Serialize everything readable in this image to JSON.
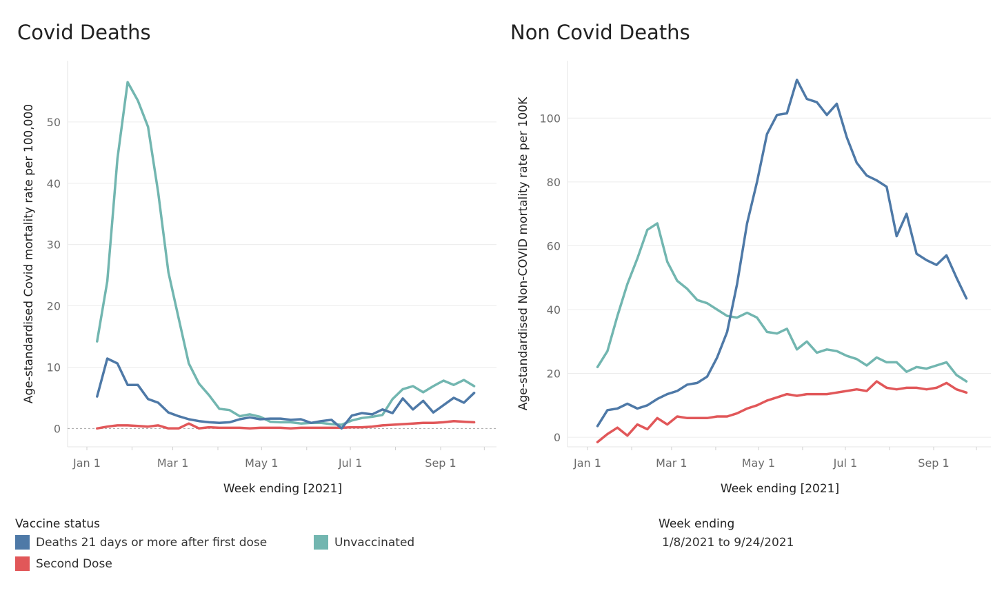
{
  "chart_data": [
    {
      "type": "line",
      "title": "Covid Deaths",
      "xlabel": "Week ending [2021]",
      "ylabel": "Age-standardised Covid mortality rate per 100,000",
      "ylim": [
        -3,
        60
      ],
      "yticks": [
        0,
        10,
        20,
        30,
        40,
        50
      ],
      "xticks": [
        {
          "label": "Jan 1",
          "day": 1
        },
        {
          "label": "Mar 1",
          "day": 60
        },
        {
          "label": "May 1",
          "day": 121
        },
        {
          "label": "Jul 1",
          "day": 182
        },
        {
          "label": "Sep 1",
          "day": 244
        }
      ],
      "zero_line": true,
      "weeks": [
        "2021-01-08",
        "2021-01-15",
        "2021-01-22",
        "2021-01-29",
        "2021-02-05",
        "2021-02-12",
        "2021-02-19",
        "2021-02-26",
        "2021-03-05",
        "2021-03-12",
        "2021-03-19",
        "2021-03-26",
        "2021-04-02",
        "2021-04-09",
        "2021-04-16",
        "2021-04-23",
        "2021-04-30",
        "2021-05-07",
        "2021-05-14",
        "2021-05-21",
        "2021-05-28",
        "2021-06-04",
        "2021-06-11",
        "2021-06-18",
        "2021-06-25",
        "2021-07-02",
        "2021-07-09",
        "2021-07-16",
        "2021-07-23",
        "2021-07-30",
        "2021-08-06",
        "2021-08-13",
        "2021-08-20",
        "2021-08-27",
        "2021-09-03",
        "2021-09-10",
        "2021-09-17",
        "2021-09-24"
      ],
      "series": [
        {
          "name": "Unvaccinated",
          "color": "#72b6b0",
          "values": [
            14.2,
            24.0,
            44.0,
            56.5,
            53.5,
            49.2,
            38.5,
            25.5,
            18.0,
            10.6,
            7.3,
            5.4,
            3.2,
            3.0,
            2.0,
            2.3,
            1.9,
            1.1,
            1.0,
            1.0,
            0.8,
            0.9,
            0.9,
            0.7,
            0.6,
            1.3,
            1.7,
            1.9,
            2.2,
            4.8,
            6.4,
            6.9,
            5.9,
            6.9,
            7.8,
            7.1,
            7.9,
            6.9
          ]
        },
        {
          "name": "Deaths 21 days or more after first dose",
          "color": "#4e79a7",
          "values": [
            5.2,
            11.4,
            10.6,
            7.1,
            7.1,
            4.8,
            4.2,
            2.6,
            2.0,
            1.5,
            1.2,
            1.0,
            0.9,
            1.0,
            1.5,
            1.8,
            1.5,
            1.6,
            1.6,
            1.4,
            1.5,
            0.9,
            1.2,
            1.4,
            0.0,
            2.1,
            2.5,
            2.3,
            3.1,
            2.5,
            4.9,
            3.1,
            4.5,
            2.6,
            3.8,
            5.0,
            4.2,
            5.8
          ]
        },
        {
          "name": "Second Dose",
          "color": "#e15759",
          "values": [
            0.0,
            0.3,
            0.5,
            0.5,
            0.4,
            0.3,
            0.5,
            0.0,
            0.0,
            0.8,
            0.0,
            0.2,
            0.1,
            0.1,
            0.1,
            0.0,
            0.1,
            0.1,
            0.1,
            0.0,
            0.1,
            0.1,
            0.1,
            0.1,
            0.1,
            0.2,
            0.2,
            0.3,
            0.5,
            0.6,
            0.7,
            0.8,
            0.9,
            0.9,
            1.0,
            1.2,
            1.1,
            1.0
          ]
        }
      ]
    },
    {
      "type": "line",
      "title": "Non Covid Deaths",
      "xlabel": "Week ending [2021]",
      "ylabel": "Age-standardised Non-COVID mortality rate per 100K",
      "ylim": [
        -3,
        118
      ],
      "yticks": [
        0,
        20,
        40,
        60,
        80,
        100
      ],
      "xticks": [
        {
          "label": "Jan 1",
          "day": 1
        },
        {
          "label": "Mar 1",
          "day": 60
        },
        {
          "label": "May 1",
          "day": 121
        },
        {
          "label": "Jul 1",
          "day": 182
        },
        {
          "label": "Sep 1",
          "day": 244
        }
      ],
      "zero_line": false,
      "weeks": [
        "2021-01-08",
        "2021-01-15",
        "2021-01-22",
        "2021-01-29",
        "2021-02-05",
        "2021-02-12",
        "2021-02-19",
        "2021-02-26",
        "2021-03-05",
        "2021-03-12",
        "2021-03-19",
        "2021-03-26",
        "2021-04-02",
        "2021-04-09",
        "2021-04-16",
        "2021-04-23",
        "2021-04-30",
        "2021-05-07",
        "2021-05-14",
        "2021-05-21",
        "2021-05-28",
        "2021-06-04",
        "2021-06-11",
        "2021-06-18",
        "2021-06-25",
        "2021-07-02",
        "2021-07-09",
        "2021-07-16",
        "2021-07-23",
        "2021-07-30",
        "2021-08-06",
        "2021-08-13",
        "2021-08-20",
        "2021-08-27",
        "2021-09-03",
        "2021-09-10",
        "2021-09-17",
        "2021-09-24"
      ],
      "series": [
        {
          "name": "Unvaccinated",
          "color": "#72b6b0",
          "values": [
            22,
            27,
            38,
            48,
            56,
            65,
            67,
            55,
            49,
            46.5,
            43,
            42,
            40,
            38,
            37.5,
            39,
            37.5,
            33,
            32.5,
            34,
            27.5,
            30,
            26.5,
            27.5,
            27,
            25.5,
            24.5,
            22.5,
            25,
            23.5,
            23.5,
            20.5,
            22,
            21.5,
            22.5,
            23.5,
            19.5,
            17.5
          ]
        },
        {
          "name": "Deaths 21 days or more after first dose",
          "color": "#4e79a7",
          "values": [
            3.5,
            8.5,
            9.0,
            10.5,
            9.0,
            10.0,
            12.0,
            13.5,
            14.5,
            16.5,
            17.0,
            19.0,
            25.0,
            33.0,
            48.0,
            67.0,
            80.0,
            95.0,
            101.0,
            101.5,
            112.0,
            106.0,
            105.0,
            101.0,
            104.5,
            94.0,
            86.0,
            82.0,
            80.5,
            78.5,
            63.0,
            70.0,
            57.5,
            55.5,
            54.0,
            57.0,
            50.0,
            43.5
          ]
        },
        {
          "name": "Second Dose",
          "color": "#e15759",
          "values": [
            -1.5,
            1.0,
            3.0,
            0.5,
            4.0,
            2.5,
            6.0,
            4.0,
            6.5,
            6.0,
            6.0,
            6.0,
            6.5,
            6.5,
            7.5,
            9.0,
            10.0,
            11.5,
            12.5,
            13.5,
            13.0,
            13.5,
            13.5,
            13.5,
            14.0,
            14.5,
            15.0,
            14.5,
            17.5,
            15.5,
            15.0,
            15.5,
            15.5,
            15.0,
            15.5,
            17.0,
            15.0,
            14.0
          ]
        }
      ]
    }
  ],
  "legend": {
    "title": "Vaccine status",
    "items": [
      {
        "label": "Deaths 21 days or more after first dose",
        "color": "#4e79a7"
      },
      {
        "label": "Unvaccinated",
        "color": "#72b6b0"
      },
      {
        "label": "Second Dose",
        "color": "#e15759"
      }
    ]
  },
  "filter": {
    "title": "Week ending",
    "value": "1/8/2021 to 9/24/2021"
  }
}
